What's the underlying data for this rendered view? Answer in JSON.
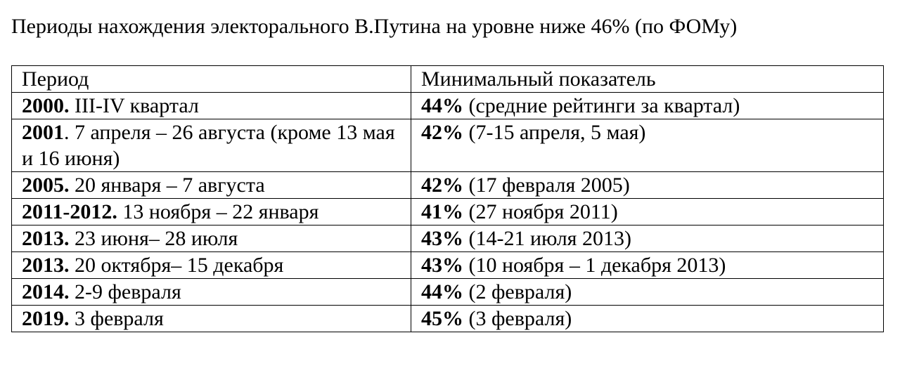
{
  "document": {
    "title": "Периоды нахождения электорального В.Путина на уровне ниже 46% (по ФОМу)"
  },
  "table": {
    "headers": {
      "period": "Период",
      "minimum": "Минимальный показатель"
    },
    "rows": [
      {
        "year": "2000.",
        "period_text": " III-IV квартал",
        "min_value": "44%",
        "min_note": " (средние рейтинги за квартал)"
      },
      {
        "year": "2001",
        "period_text": ". 7 апреля – 26 августа (кроме 13 мая и 16 июня)",
        "min_value": "42%",
        "min_note": " (7-15 апреля, 5 мая)"
      },
      {
        "year": "2005.",
        "period_text": " 20 января – 7 августа",
        "min_value": "42%",
        "min_note": " (17 февраля 2005)"
      },
      {
        "year": "2011-2012.",
        "period_text": " 13 ноября – 22 января",
        "min_value": "41%",
        "min_note": " (27 ноября 2011)"
      },
      {
        "year": "2013.",
        "period_text": " 23 июня– 28 июля",
        "min_value": "43%",
        "min_note": " (14-21 июля 2013)"
      },
      {
        "year": "2013.",
        "period_text": " 20 октября– 15 декабря",
        "min_value": "43%",
        "min_note": " (10 ноября – 1 декабря 2013)"
      },
      {
        "year": "2014.",
        "period_text": " 2-9 февраля",
        "min_value": "44%",
        "min_note": " (2 февраля)"
      },
      {
        "year": "2019.",
        "period_text": " 3 февраля",
        "min_value": "45%",
        "min_note": " (3 февраля)"
      }
    ]
  }
}
